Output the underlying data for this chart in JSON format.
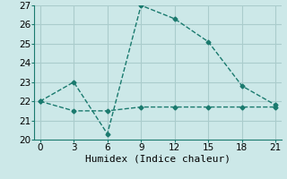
{
  "line1_x": [
    0,
    3,
    6,
    9,
    12,
    15,
    18,
    21
  ],
  "line1_y": [
    22.0,
    23.0,
    20.3,
    27.0,
    26.3,
    25.1,
    22.8,
    21.8
  ],
  "line2_x": [
    0,
    3,
    6,
    9,
    12,
    15,
    18,
    21
  ],
  "line2_y": [
    22.0,
    21.5,
    21.5,
    21.7,
    21.7,
    21.7,
    21.7,
    21.7
  ],
  "line_color": "#1a7a6e",
  "bg_color": "#cce8e8",
  "grid_color": "#aacccc",
  "xlabel": "Humidex (Indice chaleur)",
  "xlim": [
    -0.5,
    21.5
  ],
  "ylim": [
    20,
    27
  ],
  "xticks": [
    0,
    3,
    6,
    9,
    12,
    15,
    18,
    21
  ],
  "yticks": [
    20,
    21,
    22,
    23,
    24,
    25,
    26,
    27
  ],
  "xlabel_fontsize": 8,
  "tick_fontsize": 7.5,
  "linewidth": 1.0,
  "markersize": 2.5
}
